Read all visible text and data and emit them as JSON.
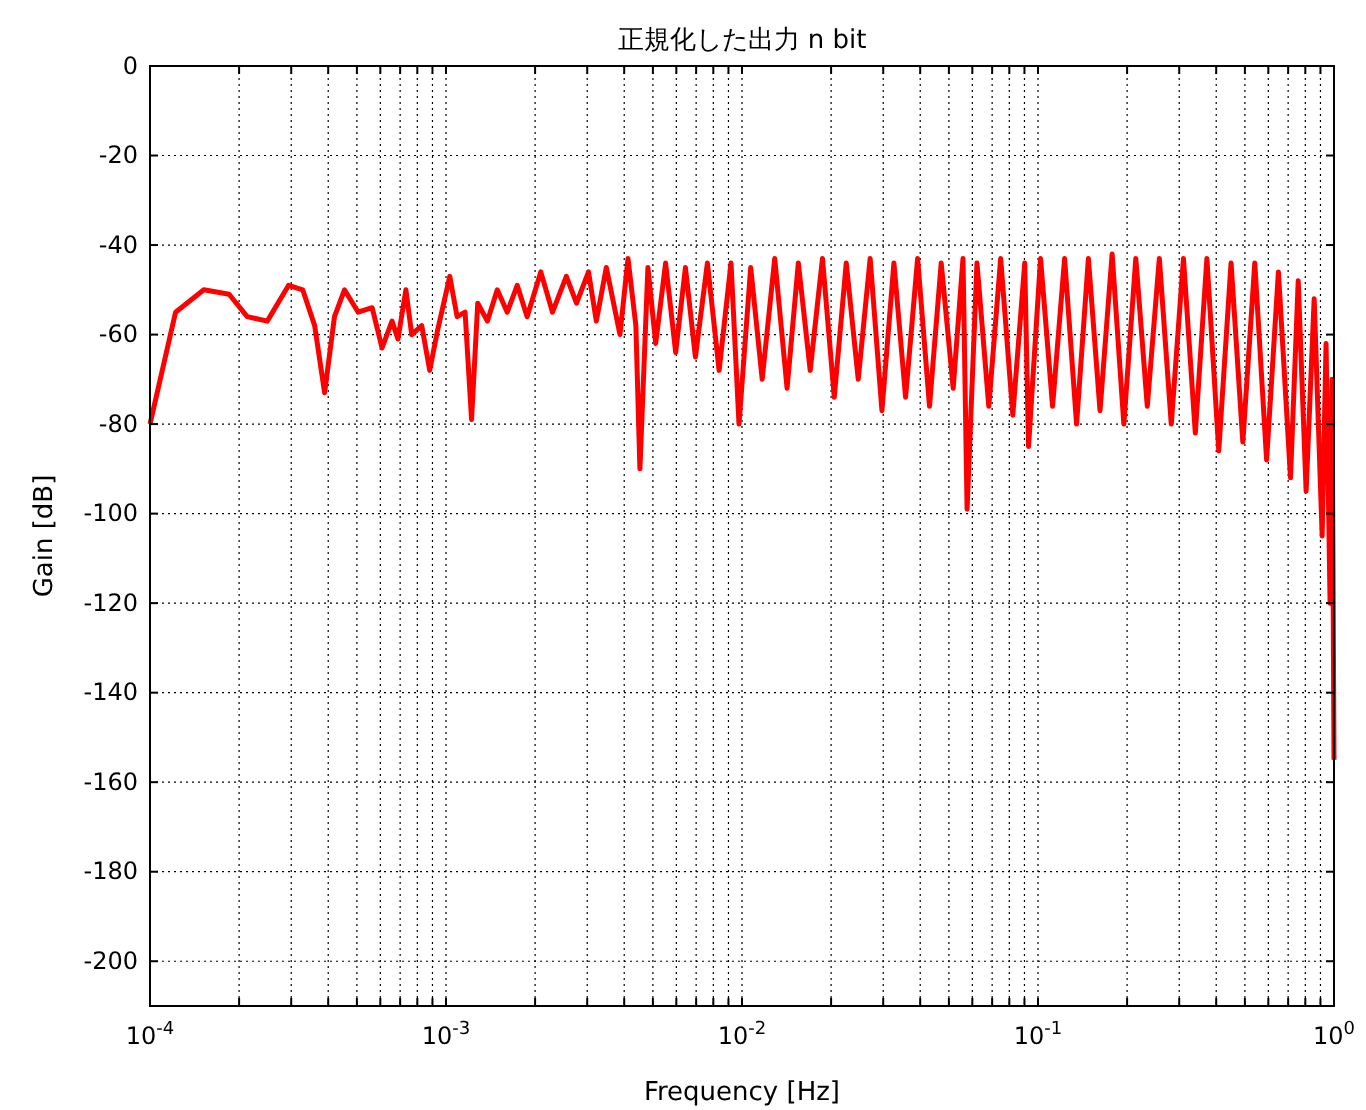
{
  "chart_data": {
    "type": "line",
    "title": "正規化した出力 n bit",
    "xlabel": "Frequency [Hz]",
    "ylabel": "Gain [dB]",
    "log": "x",
    "grid": true,
    "marker": "none",
    "line_style": "solid",
    "xlim": [
      0.0001,
      1
    ],
    "ylim": [
      -210,
      0
    ],
    "xticks": [
      {
        "value": 0.0001,
        "label": "10$^{-4}$"
      },
      {
        "value": 0.0002,
        "label": null
      },
      {
        "value": 0.0003,
        "label": null
      },
      {
        "value": 0.0004,
        "label": null
      },
      {
        "value": 0.0005,
        "label": null
      },
      {
        "value": 0.0006,
        "label": null
      },
      {
        "value": 0.0007,
        "label": null
      },
      {
        "value": 0.0008,
        "label": null
      },
      {
        "value": 0.0009,
        "label": null
      },
      {
        "value": 0.001,
        "label": "10$^{-3}$"
      },
      {
        "value": 0.002,
        "label": null
      },
      {
        "value": 0.003,
        "label": null
      },
      {
        "value": 0.004,
        "label": null
      },
      {
        "value": 0.005,
        "label": null
      },
      {
        "value": 0.006,
        "label": null
      },
      {
        "value": 0.007,
        "label": null
      },
      {
        "value": 0.008,
        "label": null
      },
      {
        "value": 0.009,
        "label": null
      },
      {
        "value": 0.01,
        "label": "10$^{-2}$"
      },
      {
        "value": 0.02,
        "label": null
      },
      {
        "value": 0.03,
        "label": null
      },
      {
        "value": 0.04,
        "label": null
      },
      {
        "value": 0.05,
        "label": null
      },
      {
        "value": 0.06,
        "label": null
      },
      {
        "value": 0.07,
        "label": null
      },
      {
        "value": 0.08,
        "label": null
      },
      {
        "value": 0.09,
        "label": null
      },
      {
        "value": 0.1,
        "label": "10$^{-1}$"
      },
      {
        "value": 0.2,
        "label": null
      },
      {
        "value": 0.3,
        "label": null
      },
      {
        "value": 0.4,
        "label": null
      },
      {
        "value": 0.5,
        "label": null
      },
      {
        "value": 0.6,
        "label": null
      },
      {
        "value": 0.7,
        "label": null
      },
      {
        "value": 0.8,
        "label": null
      },
      {
        "value": 0.9,
        "label": null
      },
      {
        "value": 1,
        "label": "10$^{0}$"
      }
    ],
    "yticks": [
      0,
      -20,
      -40,
      -60,
      -80,
      -100,
      -120,
      -140,
      -160,
      -180,
      -200
    ],
    "x": [
      0.0001,
      0.000122,
      0.000152,
      0.000185,
      0.000213,
      0.000249,
      0.000294,
      0.000328,
      0.00036,
      0.000389,
      0.00042,
      0.000454,
      0.000505,
      0.000563,
      0.000608,
      0.000657,
      0.000688,
      0.000732,
      0.000766,
      0.000828,
      0.000881,
      0.000937,
      0.00103,
      0.00109,
      0.00116,
      0.00122,
      0.00128,
      0.00138,
      0.00149,
      0.00161,
      0.00174,
      0.00188,
      0.00209,
      0.00229,
      0.00255,
      0.00276,
      0.00303,
      0.00322,
      0.00348,
      0.00387,
      0.00412,
      0.00438,
      0.00452,
      0.00481,
      0.00511,
      0.00552,
      0.00597,
      0.00644,
      0.00696,
      0.00764,
      0.00837,
      0.00918,
      0.00977,
      0.0107,
      0.0117,
      0.0129,
      0.0142,
      0.0155,
      0.017,
      0.0187,
      0.0205,
      0.0225,
      0.0247,
      0.0271,
      0.0297,
      0.0326,
      0.0357,
      0.0392,
      0.043,
      0.0471,
      0.0517,
      0.0558,
      0.0576,
      0.0622,
      0.0682,
      0.0748,
      0.0822,
      0.0902,
      0.0929,
      0.102,
      0.112,
      0.123,
      0.135,
      0.148,
      0.162,
      0.178,
      0.195,
      0.214,
      0.234,
      0.257,
      0.282,
      0.31,
      0.34,
      0.372,
      0.408,
      0.449,
      0.492,
      0.54,
      0.592,
      0.649,
      0.713,
      0.757,
      0.805,
      0.857,
      0.912,
      0.94,
      0.97,
      0.985,
      1
    ],
    "series": [
      {
        "color": "#ff0000",
        "values": [
          -80,
          -55,
          -50,
          -51,
          -56,
          -57,
          -49,
          -50,
          -58,
          -73,
          -56,
          -50,
          -55,
          -54,
          -63,
          -57,
          -61,
          -50,
          -60,
          -58,
          -68,
          -59,
          -47,
          -56,
          -55,
          -79,
          -53,
          -57,
          -50,
          -55,
          -49,
          -56,
          -46,
          -55,
          -47,
          -53,
          -46,
          -57,
          -45,
          -60,
          -43,
          -58,
          -90,
          -45,
          -62,
          -44,
          -64,
          -45,
          -65,
          -44,
          -68,
          -44,
          -80,
          -45,
          -70,
          -43,
          -72,
          -44,
          -68,
          -43,
          -74,
          -44,
          -70,
          -43,
          -77,
          -44,
          -74,
          -43,
          -76,
          -44,
          -72,
          -43,
          -99,
          -44,
          -76,
          -43,
          -78,
          -44,
          -85,
          -43,
          -76,
          -43,
          -80,
          -43,
          -77,
          -42,
          -80,
          -43,
          -76,
          -43,
          -80,
          -43,
          -82,
          -43,
          -86,
          -44,
          -84,
          -44,
          -88,
          -46,
          -92,
          -48,
          -95,
          -52,
          -105,
          -62,
          -120,
          -70,
          -155
        ]
      }
    ]
  }
}
